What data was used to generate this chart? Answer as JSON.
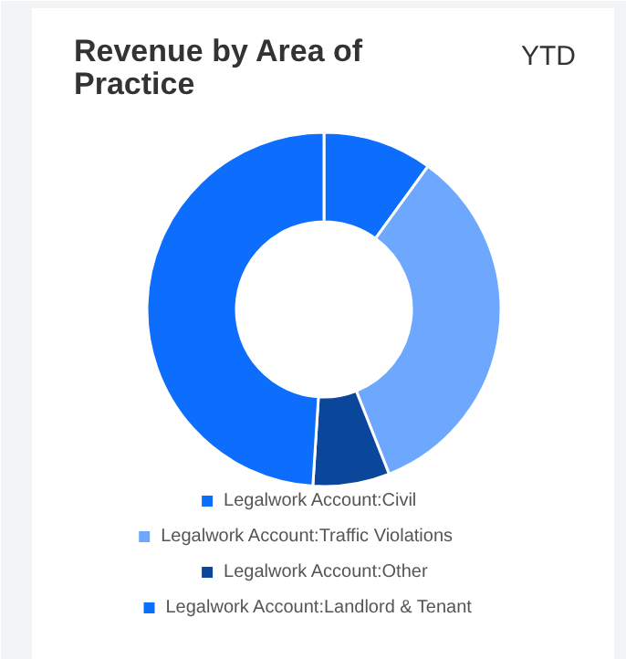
{
  "chart_data": {
    "type": "donut",
    "title": "Revenue by Area of Practice",
    "annotations": [
      "YTD"
    ],
    "legend": "bottom",
    "categories": [
      "Legalwork Account:Civil",
      "Legalwork Account:Traffic Violations",
      "Legalwork Account:Other",
      "Legalwork Account:Landlord & Tenant"
    ],
    "values": [
      10,
      34,
      7,
      49
    ],
    "colors": [
      "#0d6efd",
      "#6ea8fe",
      "#0a4699",
      "#0d6efd"
    ]
  }
}
